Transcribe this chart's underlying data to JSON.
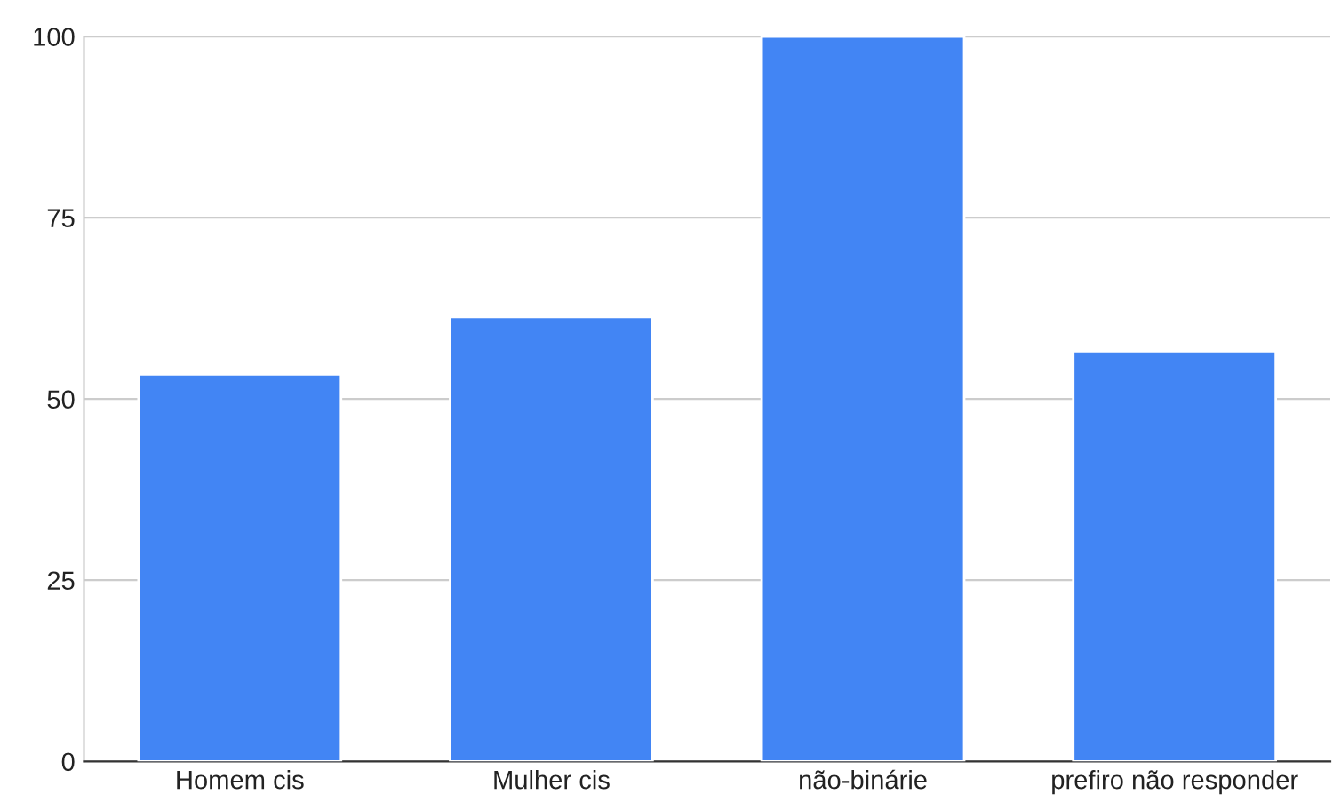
{
  "chart_data": {
    "type": "bar",
    "categories": [
      "Homem cis",
      "Mulher cis",
      "não-binárie",
      "prefiro não responder"
    ],
    "values": [
      53.4,
      61.3,
      100,
      56.6
    ],
    "color": "#4285f4",
    "ylim": [
      0,
      100
    ],
    "yticks": [
      0,
      25,
      50,
      75,
      100
    ],
    "grid": "y",
    "legend": false
  }
}
